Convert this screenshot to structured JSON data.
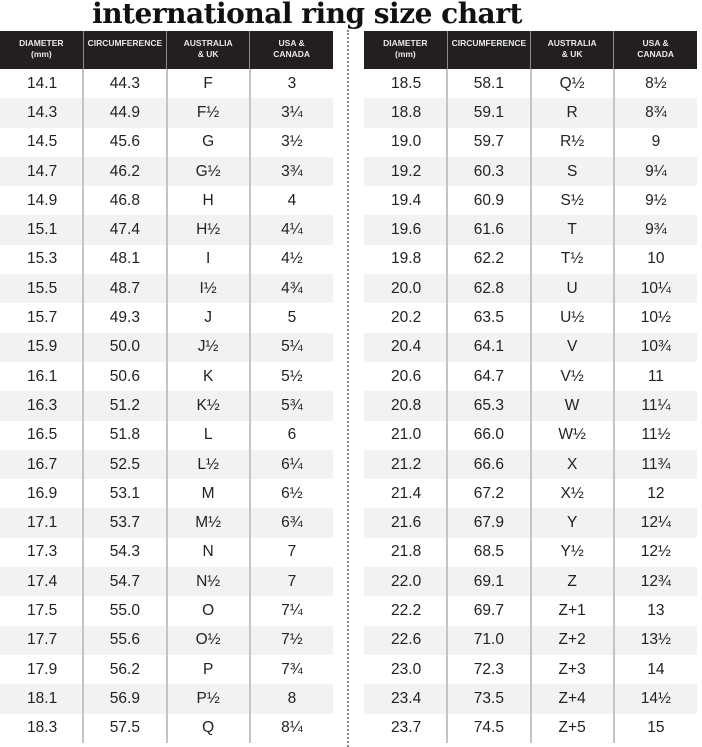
{
  "title": "international ring size chart",
  "headers": [
    "DIAMETER (mm)",
    "CIRCUMFERENCE",
    "AUSTRALIA & UK",
    "USA & CANADA"
  ],
  "header_lines": [
    [
      "DIAMETER",
      "(mm)"
    ],
    [
      "CIRCUMFERENCE"
    ],
    [
      "AUSTRALIA",
      "& UK"
    ],
    [
      "USA &",
      "CANADA"
    ]
  ],
  "left_rows": [
    [
      "14.1",
      "44.3",
      "F",
      "3"
    ],
    [
      "14.3",
      "44.9",
      "F½",
      "3¼"
    ],
    [
      "14.5",
      "45.6",
      "G",
      "3½"
    ],
    [
      "14.7",
      "46.2",
      "G½",
      "3¾"
    ],
    [
      "14.9",
      "46.8",
      "H",
      "4"
    ],
    [
      "15.1",
      "47.4",
      "H½",
      "4¼"
    ],
    [
      "15.3",
      "48.1",
      "I",
      "4½"
    ],
    [
      "15.5",
      "48.7",
      "I½",
      "4¾"
    ],
    [
      "15.7",
      "49.3",
      "J",
      "5"
    ],
    [
      "15.9",
      "50.0",
      "J½",
      "5¼"
    ],
    [
      "16.1",
      "50.6",
      "K",
      "5½"
    ],
    [
      "16.3",
      "51.2",
      "K½",
      "5¾"
    ],
    [
      "16.5",
      "51.8",
      "L",
      "6"
    ],
    [
      "16.7",
      "52.5",
      "L½",
      "6¼"
    ],
    [
      "16.9",
      "53.1",
      "M",
      "6½"
    ],
    [
      "17.1",
      "53.7",
      "M½",
      "6¾"
    ],
    [
      "17.3",
      "54.3",
      "N",
      "7"
    ],
    [
      "17.4",
      "54.7",
      "N½",
      "7"
    ],
    [
      "17.5",
      "55.0",
      "O",
      "7¼"
    ],
    [
      "17.7",
      "55.6",
      "O½",
      "7½"
    ],
    [
      "17.9",
      "56.2",
      "P",
      "7¾"
    ],
    [
      "18.1",
      "56.9",
      "P½",
      "8"
    ],
    [
      "18.3",
      "57.5",
      "Q",
      "8¼"
    ]
  ],
  "right_rows": [
    [
      "18.5",
      "58.1",
      "Q½",
      "8½"
    ],
    [
      "18.8",
      "59.1",
      "R",
      "8¾"
    ],
    [
      "19.0",
      "59.7",
      "R½",
      "9"
    ],
    [
      "19.2",
      "60.3",
      "S",
      "9¼"
    ],
    [
      "19.4",
      "60.9",
      "S½",
      "9½"
    ],
    [
      "19.6",
      "61.6",
      "T",
      "9¾"
    ],
    [
      "19.8",
      "62.2",
      "T½",
      "10"
    ],
    [
      "20.0",
      "62.8",
      "U",
      "10¼"
    ],
    [
      "20.2",
      "63.5",
      "U½",
      "10½"
    ],
    [
      "20.4",
      "64.1",
      "V",
      "10¾"
    ],
    [
      "20.6",
      "64.7",
      "V½",
      "11"
    ],
    [
      "20.8",
      "65.3",
      "W",
      "11¼"
    ],
    [
      "21.0",
      "66.0",
      "W½",
      "11½"
    ],
    [
      "21.2",
      "66.6",
      "X",
      "11¾"
    ],
    [
      "21.4",
      "67.2",
      "X½",
      "12"
    ],
    [
      "21.6",
      "67.9",
      "Y",
      "12¼"
    ],
    [
      "21.8",
      "68.5",
      "Y½",
      "12½"
    ],
    [
      "22.0",
      "69.1",
      "Z",
      "12¾"
    ],
    [
      "22.2",
      "69.7",
      "Z+1",
      "13"
    ],
    [
      "22.6",
      "71.0",
      "Z+2",
      "13½"
    ],
    [
      "23.0",
      "72.3",
      "Z+3",
      "14"
    ],
    [
      "23.4",
      "73.5",
      "Z+4",
      "14½"
    ],
    [
      "23.7",
      "74.5",
      "Z+5",
      "15"
    ]
  ]
}
